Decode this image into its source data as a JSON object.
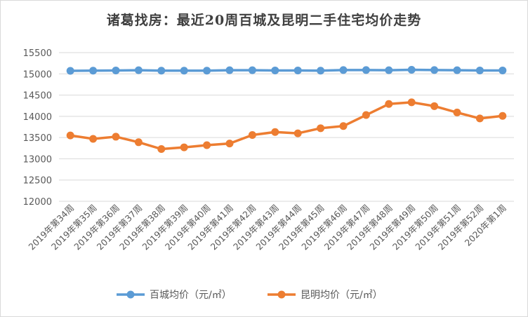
{
  "chart_data": {
    "type": "line",
    "title": "诸葛找房：最近20周百城及昆明二手住宅均价走势",
    "categories": [
      "2019年第34周",
      "2019年第35周",
      "2019年第36周",
      "2019年第37周",
      "2019年第38周",
      "2019年第39周",
      "2019年第40周",
      "2019年第41周",
      "2019年第42周",
      "2019年第43周",
      "2019年第44周",
      "2019年第45周",
      "2019年第46周",
      "2019年第47周",
      "2019年第48周",
      "2019年第49周",
      "2019年第50周",
      "2019年第51周",
      "2019年第52周",
      "2020年第1周"
    ],
    "yticks": [
      "12000",
      "12500",
      "13000",
      "13500",
      "14000",
      "14500",
      "15000",
      "15500"
    ],
    "ylim": [
      12000,
      15500
    ],
    "grid": true,
    "legend_position": "bottom",
    "series": [
      {
        "name": "百城均价（元/㎡）",
        "color": "#5b9bd5",
        "values": [
          15070,
          15075,
          15080,
          15085,
          15075,
          15075,
          15075,
          15085,
          15085,
          15080,
          15080,
          15075,
          15090,
          15090,
          15085,
          15095,
          15090,
          15085,
          15080,
          15080
        ]
      },
      {
        "name": "昆明均价（元/㎡）",
        "color": "#ed7d31",
        "values": [
          13550,
          13470,
          13520,
          13390,
          13230,
          13270,
          13320,
          13360,
          13560,
          13630,
          13600,
          13720,
          13770,
          14030,
          14290,
          14330,
          14240,
          14090,
          13950,
          14010
        ]
      }
    ]
  }
}
